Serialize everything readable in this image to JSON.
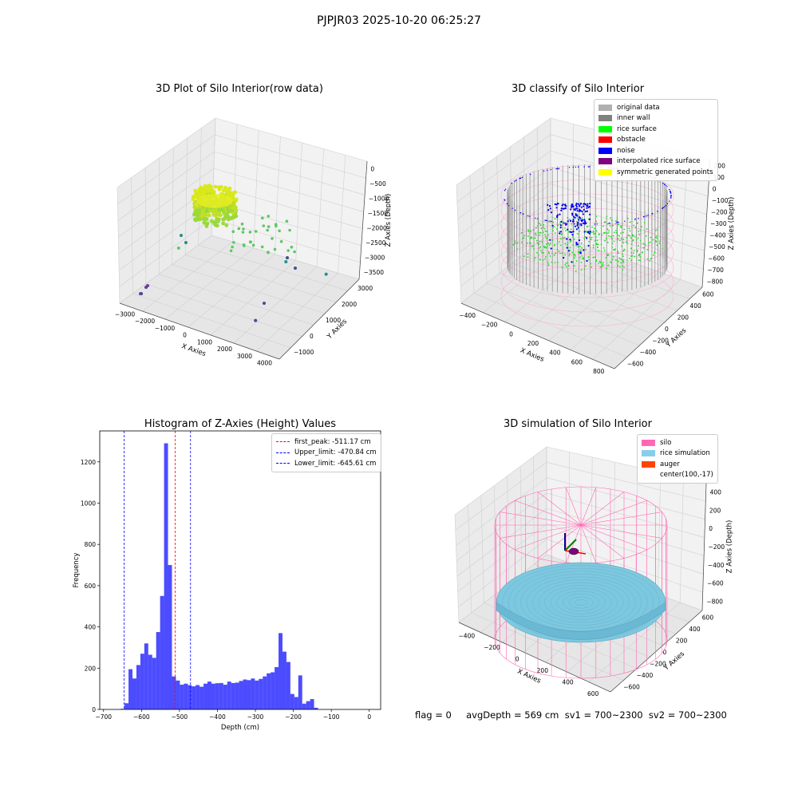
{
  "figure": {
    "suptitle": "PJPJR03 2025-10-20 06:25:27",
    "status_line": "flag = 0     avgDepth = 569 cm  sv1 = 700~2300  sv2 = 700~2300"
  },
  "chart_data": [
    {
      "type": "scatter",
      "projection": "3d",
      "title": "3D Plot of Silo Interior(row data)",
      "xlabel": "X Axies",
      "ylabel": "Y Axies",
      "zlabel": "Z Axies (Depth)",
      "x_ticks": [
        "−3000",
        "−2000",
        "−1000",
        "0",
        "1000",
        "2000",
        "3000",
        "4000"
      ],
      "y_ticks": [
        "−1000",
        "0",
        "1000",
        "2000",
        "3000"
      ],
      "z_ticks": [
        "0",
        "−500",
        "−1000",
        "−1500",
        "−2000",
        "−2500",
        "−3000",
        "−3500"
      ],
      "cluster": {
        "x": [
          -600,
          600
        ],
        "y": [
          -600,
          600
        ],
        "z": [
          -900,
          -300
        ],
        "colormap": "viridis"
      },
      "outliers": [
        {
          "x": 1300,
          "y": 500,
          "z": -1500
        },
        {
          "x": 1800,
          "y": 900,
          "z": -1900
        },
        {
          "x": 2400,
          "y": 1200,
          "z": -2200
        },
        {
          "x": 3200,
          "y": 2500,
          "z": -3000
        },
        {
          "x": -2600,
          "y": -1100,
          "z": -3400
        },
        {
          "x": -1500,
          "y": -300,
          "z": -2000
        },
        {
          "x": 2800,
          "y": -900,
          "z": -3100
        }
      ]
    },
    {
      "type": "scatter",
      "projection": "3d",
      "title": "3D classify of Silo Interior",
      "xlabel": "X Axies",
      "ylabel": "Y Axies",
      "zlabel": "Z Axies (Depth)",
      "x_ticks": [
        "−400",
        "−200",
        "0",
        "200",
        "400",
        "600",
        "800"
      ],
      "y_ticks": [
        "−600",
        "−400",
        "−200",
        "0",
        "200",
        "400",
        "600"
      ],
      "z_ticks": [
        "200",
        "100",
        "0",
        "−100",
        "−200",
        "−300",
        "−400",
        "−500",
        "−600",
        "−700",
        "−800"
      ],
      "legend_position": "top-right",
      "series": [
        {
          "name": "original data",
          "color": "#b0b0b0"
        },
        {
          "name": "inner wall",
          "color": "#808080"
        },
        {
          "name": "rice surface",
          "color": "#00ff00"
        },
        {
          "name": "obstacle",
          "color": "#ff0000"
        },
        {
          "name": "noise",
          "color": "#0000ff"
        },
        {
          "name": "interpolated rice surface",
          "color": "#800080"
        },
        {
          "name": "symmetric generated points",
          "color": "#ffff00"
        }
      ]
    },
    {
      "type": "bar",
      "title": "Histogram of Z-Axies (Height) Values",
      "xlabel": "Depth (cm)",
      "ylabel": "Frequency",
      "xlim": [
        -710,
        30
      ],
      "ylim": [
        0,
        1350
      ],
      "x_ticks": [
        -700,
        -600,
        -500,
        -400,
        -300,
        -200,
        -100,
        0
      ],
      "y_ticks": [
        0,
        200,
        400,
        600,
        800,
        1000,
        1200
      ],
      "bar_color": "#0000ff",
      "bin_width": 10.4,
      "bin_starts": [
        -655,
        -644.6,
        -634.2,
        -623.8,
        -613.4,
        -603,
        -592.6,
        -582.2,
        -571.8,
        -561.4,
        -551,
        -540.6,
        -530.2,
        -519.8,
        -509.4,
        -499,
        -488.6,
        -478.2,
        -467.8,
        -457.4,
        -447,
        -436.6,
        -426.2,
        -415.8,
        -405.4,
        -395,
        -384.6,
        -374.2,
        -363.8,
        -353.4,
        -343,
        -332.6,
        -322.2,
        -311.8,
        -301.4,
        -291,
        -280.6,
        -270.2,
        -259.8,
        -249.4,
        -239,
        -228.6,
        -218.2,
        -207.8,
        -197.4,
        -187,
        -176.6,
        -166.2,
        -155.8,
        -145.4,
        -135,
        -124.6,
        -114.2,
        -103.8,
        -93.4,
        -83,
        -72.6,
        -62.2,
        -51.8,
        -41.4,
        -31,
        -20.6,
        -10.2
      ],
      "values": [
        3,
        30,
        195,
        150,
        215,
        270,
        320,
        265,
        250,
        375,
        550,
        1290,
        700,
        160,
        140,
        120,
        125,
        118,
        112,
        118,
        110,
        125,
        135,
        125,
        127,
        128,
        120,
        135,
        128,
        130,
        138,
        145,
        142,
        150,
        140,
        148,
        160,
        175,
        180,
        205,
        370,
        280,
        230,
        75,
        60,
        165,
        28,
        40,
        50,
        8,
        0,
        0,
        0,
        0,
        0,
        0,
        0,
        0,
        0,
        0,
        0,
        0,
        0
      ],
      "reference_lines": [
        {
          "name": "first_peak: -511.17 cm",
          "x": -511.17,
          "color": "#ff0000"
        },
        {
          "name": "Upper_limit: -470.84 cm",
          "x": -470.84,
          "color": "#0000ff"
        },
        {
          "name": "Lower_limit: -645.61 cm",
          "x": -645.61,
          "color": "#0000ff"
        }
      ],
      "legend_position": "top-right"
    },
    {
      "type": "scatter",
      "projection": "3d",
      "title": "3D simulation of Silo Interior",
      "xlabel": "X Axies",
      "ylabel": "Y Axies",
      "zlabel": "Z Axies (Depth)",
      "x_ticks": [
        "−400",
        "−200",
        "0",
        "200",
        "400",
        "600"
      ],
      "y_ticks": [
        "−600",
        "−400",
        "−200",
        "0",
        "200",
        "400",
        "600"
      ],
      "z_ticks": [
        "400",
        "200",
        "0",
        "−200",
        "−400",
        "−600",
        "−800"
      ],
      "legend_position": "top-right",
      "series": [
        {
          "name": "silo",
          "color": "#ff69b4"
        },
        {
          "name": "rice simulation",
          "color": "#87ceeb"
        },
        {
          "name": "auger",
          "color": "#ff4500"
        },
        {
          "name": "center(100,-17)",
          "color": "none"
        }
      ]
    }
  ]
}
